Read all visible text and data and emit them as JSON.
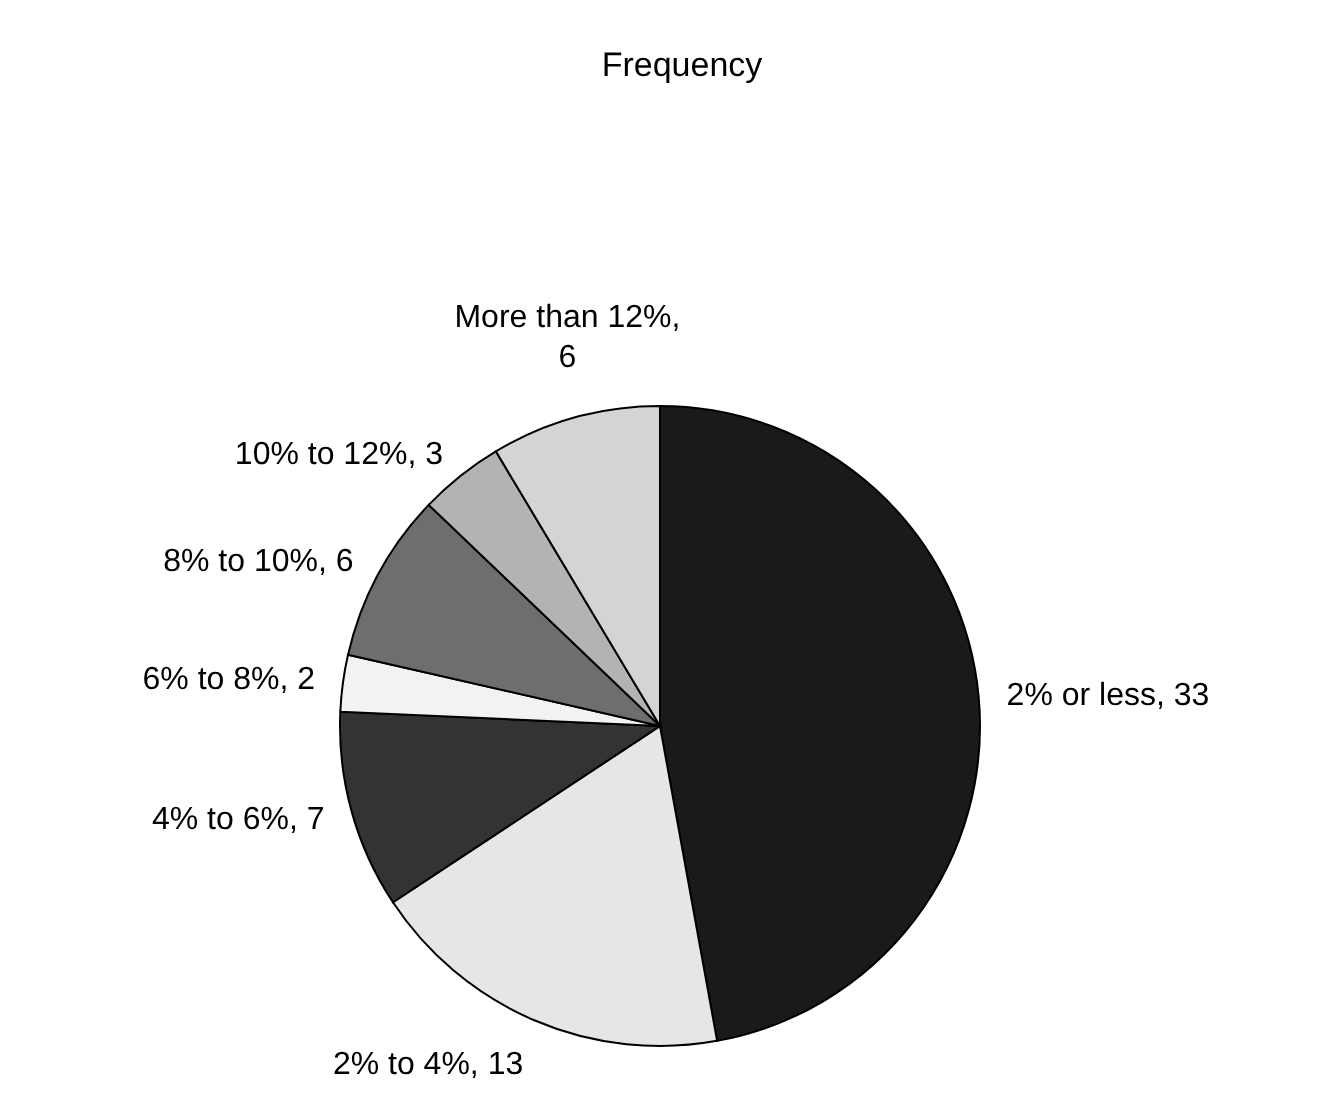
{
  "chart_data": {
    "type": "pie",
    "title": "Frequency",
    "categories": [
      "2% or less",
      "2% to 4%",
      "4% to 6%",
      "6% to 8%",
      "8% to 10%",
      "10% to 12%",
      "More than 12%"
    ],
    "values": [
      33,
      13,
      7,
      2,
      6,
      3,
      6
    ],
    "value_labels": [
      ", 33",
      ", 13",
      ", 7",
      ", 2",
      ", 6",
      ", 3",
      ", 6"
    ],
    "colors": [
      "#1a1a1a",
      "#e6e6e6",
      "#333333",
      "#f2f2f2",
      "#6e6e6e",
      "#b3b3b3",
      "#d4d4d4"
    ],
    "legend": false
  }
}
